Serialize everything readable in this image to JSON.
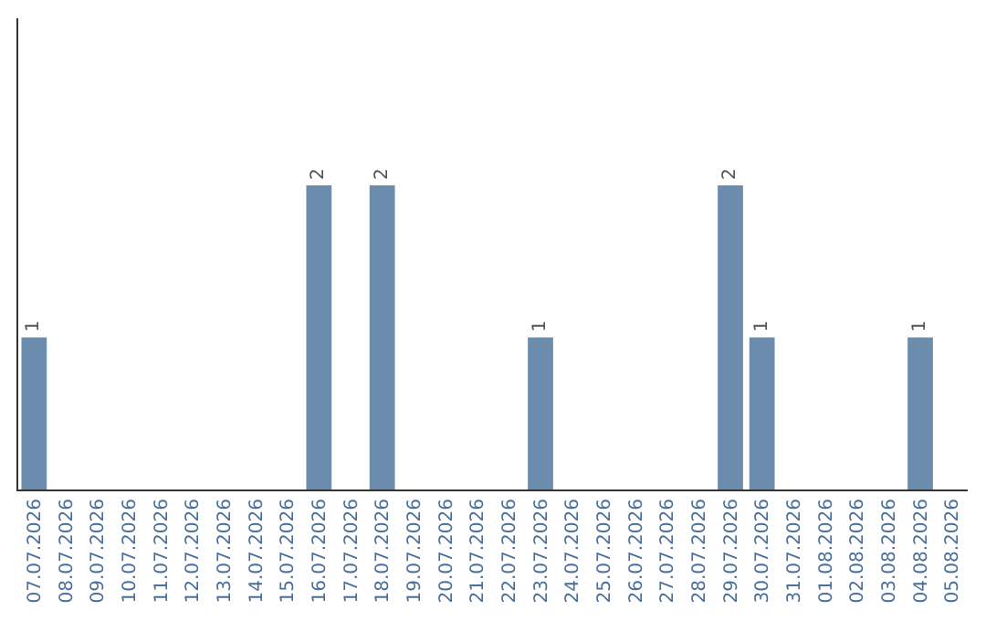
{
  "chart_data": {
    "type": "bar",
    "categories": [
      "07.07.2026",
      "08.07.2026",
      "09.07.2026",
      "10.07.2026",
      "11.07.2026",
      "12.07.2026",
      "13.07.2026",
      "14.07.2026",
      "15.07.2026",
      "16.07.2026",
      "17.07.2026",
      "18.07.2026",
      "19.07.2026",
      "20.07.2026",
      "21.07.2026",
      "22.07.2026",
      "23.07.2026",
      "24.07.2026",
      "25.07.2026",
      "26.07.2026",
      "27.07.2026",
      "28.07.2026",
      "29.07.2026",
      "30.07.2026",
      "31.07.2026",
      "01.08.2026",
      "02.08.2026",
      "03.08.2026",
      "04.08.2026",
      "05.08.2026"
    ],
    "values": [
      1,
      0,
      0,
      0,
      0,
      0,
      0,
      0,
      0,
      2,
      0,
      2,
      0,
      0,
      0,
      0,
      1,
      0,
      0,
      0,
      0,
      0,
      2,
      1,
      0,
      0,
      0,
      0,
      1,
      0
    ],
    "value_labels": [
      "1",
      null,
      null,
      null,
      null,
      null,
      null,
      null,
      null,
      "2",
      null,
      "2",
      null,
      null,
      null,
      null,
      "1",
      null,
      null,
      null,
      null,
      null,
      "2",
      "1",
      null,
      null,
      null,
      null,
      "1",
      null
    ],
    "color": "#6b8cad",
    "ylim": [
      0,
      3.1
    ],
    "tick_labels": "x"
  }
}
